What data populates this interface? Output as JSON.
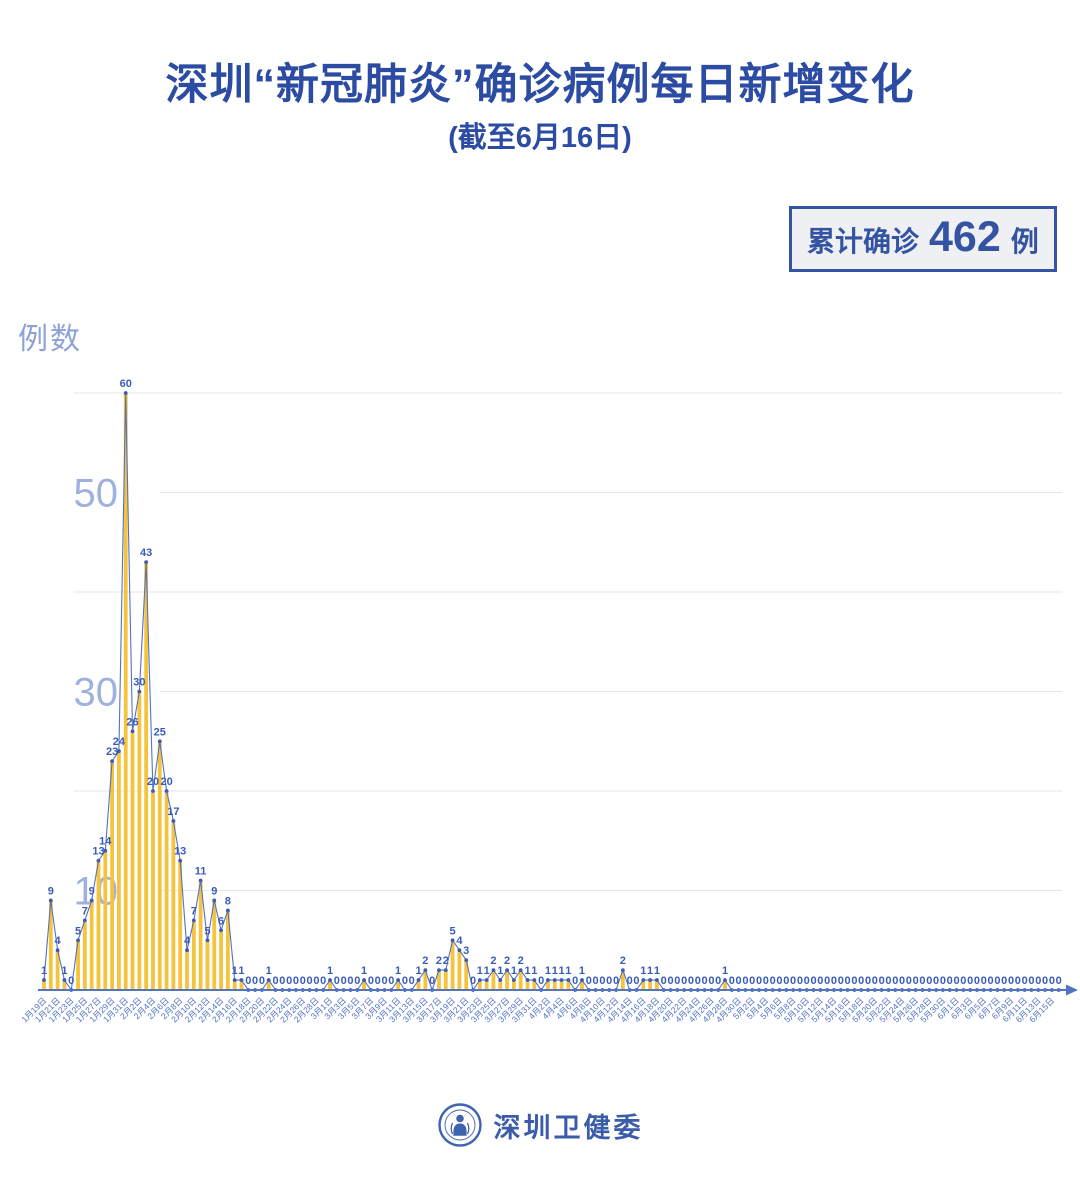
{
  "title": "深圳“新冠肺炎”确诊病例每日新增变化",
  "subtitle": "(截至6月16日)",
  "badge": {
    "prefix": "累计确诊",
    "value": "462",
    "suffix": "例"
  },
  "y_axis": {
    "title": "例数",
    "ticks": [
      50,
      30,
      10
    ],
    "gridlines": [
      10,
      20,
      30,
      40,
      50,
      60
    ]
  },
  "footer": {
    "org": "深圳卫健委",
    "logo_icon": "shenzhen-health-commission-emblem"
  },
  "chart_data": {
    "type": "bar",
    "title": "深圳“新冠肺炎”确诊病例每日新增变化",
    "subtitle": "(截至6月16日)",
    "cumulative_total": 462,
    "xlabel": "",
    "ylabel": "例数",
    "ylim": [
      0,
      62
    ],
    "grid": true,
    "label_every": 2,
    "x": [
      "1月19日",
      "1月20日",
      "1月21日",
      "1月22日",
      "1月23日",
      "1月24日",
      "1月25日",
      "1月26日",
      "1月27日",
      "1月28日",
      "1月29日",
      "1月30日",
      "1月31日",
      "2月1日",
      "2月2日",
      "2月3日",
      "2月4日",
      "2月5日",
      "2月6日",
      "2月7日",
      "2月8日",
      "2月9日",
      "2月10日",
      "2月11日",
      "2月12日",
      "2月13日",
      "2月14日",
      "2月15日",
      "2月16日",
      "2月17日",
      "2月18日",
      "2月19日",
      "2月20日",
      "2月21日",
      "2月22日",
      "2月23日",
      "2月24日",
      "2月25日",
      "2月26日",
      "2月27日",
      "2月28日",
      "2月29日",
      "3月1日",
      "3月2日",
      "3月3日",
      "3月4日",
      "3月5日",
      "3月6日",
      "3月7日",
      "3月8日",
      "3月9日",
      "3月10日",
      "3月11日",
      "3月12日",
      "3月13日",
      "3月14日",
      "3月15日",
      "3月16日",
      "3月17日",
      "3月18日",
      "3月19日",
      "3月20日",
      "3月21日",
      "3月22日",
      "3月23日",
      "3月24日",
      "3月25日",
      "3月26日",
      "3月27日",
      "3月28日",
      "3月29日",
      "3月30日",
      "3月31日",
      "4月1日",
      "4月2日",
      "4月3日",
      "4月4日",
      "4月5日",
      "4月6日",
      "4月7日",
      "4月8日",
      "4月9日",
      "4月10日",
      "4月11日",
      "4月12日",
      "4月13日",
      "4月14日",
      "4月15日",
      "4月16日",
      "4月17日",
      "4月18日",
      "4月19日",
      "4月20日",
      "4月21日",
      "4月22日",
      "4月23日",
      "4月24日",
      "4月25日",
      "4月26日",
      "4月27日",
      "4月28日",
      "4月29日",
      "4月30日",
      "5月1日",
      "5月2日",
      "5月3日",
      "5月4日",
      "5月5日",
      "5月6日",
      "5月7日",
      "5月8日",
      "5月9日",
      "5月10日",
      "5月11日",
      "5月12日",
      "5月13日",
      "5月14日",
      "5月15日",
      "5月16日",
      "5月17日",
      "5月18日",
      "5月19日",
      "5月20日",
      "5月21日",
      "5月22日",
      "5月23日",
      "5月24日",
      "5月25日",
      "5月26日",
      "5月27日",
      "5月28日",
      "5月29日",
      "5月30日",
      "5月31日",
      "6月1日",
      "6月2日",
      "6月3日",
      "6月4日",
      "6月5日",
      "6月6日",
      "6月7日",
      "6月8日",
      "6月9日",
      "6月10日",
      "6月11日",
      "6月12日",
      "6月13日",
      "6月14日",
      "6月15日",
      "6月16日"
    ],
    "values": [
      1,
      9,
      4,
      1,
      0,
      5,
      7,
      9,
      13,
      14,
      23,
      24,
      60,
      26,
      30,
      43,
      20,
      25,
      20,
      17,
      13,
      4,
      7,
      11,
      5,
      9,
      6,
      8,
      1,
      1,
      0,
      0,
      0,
      1,
      0,
      0,
      0,
      0,
      0,
      0,
      0,
      0,
      1,
      0,
      0,
      0,
      0,
      1,
      0,
      0,
      0,
      0,
      1,
      0,
      0,
      1,
      2,
      0,
      2,
      2,
      5,
      4,
      3,
      0,
      1,
      1,
      2,
      1,
      2,
      1,
      2,
      1,
      1,
      0,
      1,
      1,
      1,
      1,
      0,
      1,
      0,
      0,
      0,
      0,
      0,
      2,
      0,
      0,
      1,
      1,
      1,
      0,
      0,
      0,
      0,
      0,
      0,
      0,
      0,
      0,
      1,
      0,
      0,
      0,
      0,
      0,
      0,
      0,
      0,
      0,
      0,
      0,
      0,
      0,
      0,
      0,
      0,
      0,
      0,
      0,
      0,
      0,
      0,
      0,
      0,
      0,
      0,
      0,
      0,
      0,
      0,
      0,
      0,
      0,
      0,
      0,
      0,
      0,
      0,
      0,
      0,
      0,
      0,
      0,
      0,
      0,
      0,
      0,
      0,
      0
    ],
    "colors": {
      "bar": "#F6C33C",
      "line": "#5272C4",
      "dot": "#3A5CB8",
      "value_label": "#3A5CB8",
      "axis": "#5272C4",
      "grid": "#E6E6E6",
      "y_label": "#9FB1DF",
      "title": "#2C4BA3",
      "badge_border": "#3453A3",
      "badge_bg": "#EFF0F3"
    }
  }
}
